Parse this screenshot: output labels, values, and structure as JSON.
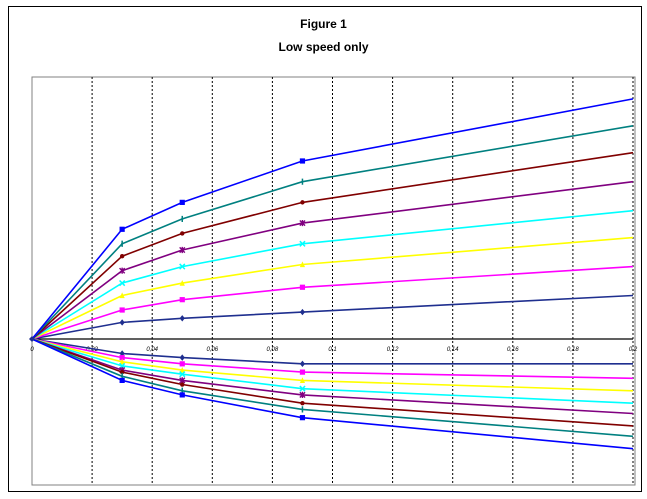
{
  "chart_data": {
    "type": "line",
    "title": "Figure 1",
    "subtitle": "Low speed only",
    "xlabel": "",
    "ylabel": "",
    "xlim": [
      0,
      0.2
    ],
    "ylim": [
      -14,
      14
    ],
    "x_tick_labels": [
      "0",
      "0,02",
      "0,04",
      "0,06",
      "0,08",
      "0,1",
      "0,12",
      "0,14",
      "0,16",
      "0,18",
      "0,2"
    ],
    "y_ticks_shown": false,
    "grid": "vertical dotted",
    "legend": "none",
    "x": [
      0,
      0.03,
      0.05,
      0.09,
      0.2
    ],
    "series": [
      {
        "color": "#1f2f8f",
        "marker": "diamond",
        "values": [
          0,
          0.8,
          1.0,
          1.3,
          2.1
        ]
      },
      {
        "color": "#ff00ff",
        "marker": "square",
        "values": [
          0,
          1.4,
          1.9,
          2.5,
          3.5
        ]
      },
      {
        "color": "#ffff00",
        "marker": "triangle",
        "values": [
          0,
          2.1,
          2.7,
          3.6,
          4.9
        ]
      },
      {
        "color": "#00ffff",
        "marker": "x",
        "values": [
          0,
          2.7,
          3.5,
          4.6,
          6.2
        ]
      },
      {
        "color": "#800080",
        "marker": "star",
        "values": [
          0,
          3.3,
          4.3,
          5.6,
          7.6
        ]
      },
      {
        "color": "#800000",
        "marker": "circle",
        "values": [
          0,
          4.0,
          5.1,
          6.6,
          9.0
        ]
      },
      {
        "color": "#008080",
        "marker": "plus",
        "values": [
          0,
          4.6,
          5.8,
          7.6,
          10.3
        ]
      },
      {
        "color": "#0000ff",
        "marker": "square",
        "values": [
          0,
          5.3,
          6.6,
          8.6,
          11.6
        ]
      },
      {
        "color": "#1f2f8f",
        "marker": "diamond",
        "values": [
          0,
          -0.7,
          -0.9,
          -1.2,
          -1.2
        ]
      },
      {
        "color": "#ff00ff",
        "marker": "square",
        "values": [
          0,
          -0.9,
          -1.2,
          -1.6,
          -1.9
        ]
      },
      {
        "color": "#ffff00",
        "marker": "triangle",
        "values": [
          0,
          -1.1,
          -1.5,
          -2.0,
          -2.5
        ]
      },
      {
        "color": "#00ffff",
        "marker": "x",
        "values": [
          0,
          -1.3,
          -1.7,
          -2.4,
          -3.1
        ]
      },
      {
        "color": "#800080",
        "marker": "star",
        "values": [
          0,
          -1.5,
          -2.0,
          -2.7,
          -3.6
        ]
      },
      {
        "color": "#800000",
        "marker": "circle",
        "values": [
          0,
          -1.6,
          -2.2,
          -3.1,
          -4.2
        ]
      },
      {
        "color": "#008080",
        "marker": "plus",
        "values": [
          0,
          -1.8,
          -2.5,
          -3.4,
          -4.7
        ]
      },
      {
        "color": "#0000ff",
        "marker": "square",
        "values": [
          0,
          -2.0,
          -2.7,
          -3.8,
          -5.3
        ]
      }
    ]
  }
}
